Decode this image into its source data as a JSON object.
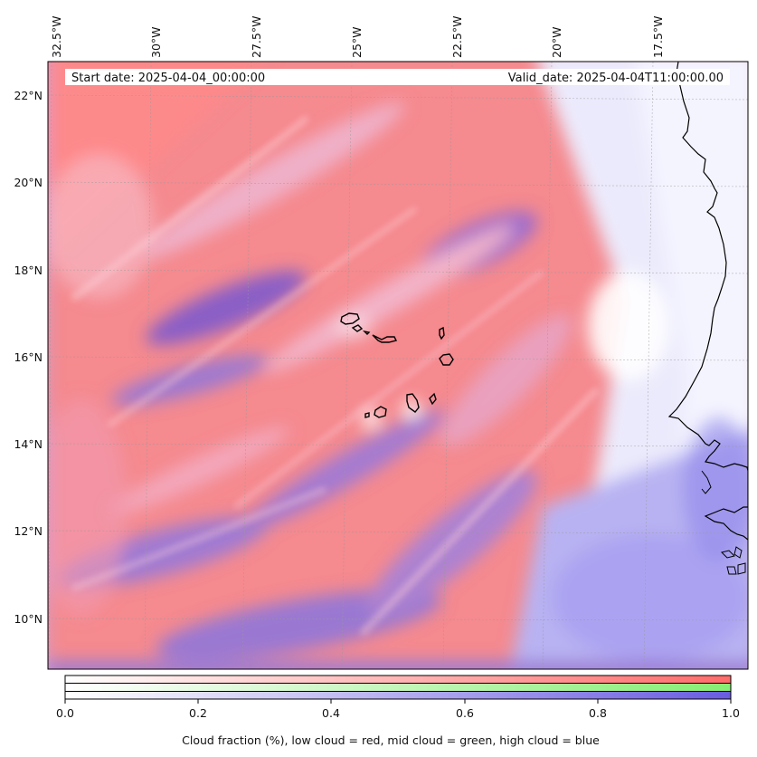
{
  "header": {
    "start_date": "Start date: 2025-04-04_00:00:00",
    "valid_date": "Valid_date: 2025-04-04T11:00:00.00"
  },
  "map": {
    "lon_labels": [
      "32.5°W",
      "30°W",
      "27.5°W",
      "25°W",
      "22.5°W",
      "20°W",
      "17.5°W"
    ],
    "lat_labels": [
      "22°N",
      "20°N",
      "18°N",
      "16°N",
      "14°N",
      "12°N",
      "10°N"
    ],
    "lon_range": [
      -32.5,
      -15.0
    ],
    "lat_range": [
      8.8,
      22.8
    ],
    "gridlines": true,
    "colors": {
      "low_cloud": "#ff7070",
      "mid_cloud": "#8ef07a",
      "high_cloud": "#6f5fd8",
      "coastline": "#000000"
    }
  },
  "colorbar": {
    "ticks": [
      "0.0",
      "0.2",
      "0.4",
      "0.6",
      "0.8",
      "1.0"
    ],
    "label": "Cloud fraction (%), low cloud = red, mid cloud = green, high cloud = blue"
  }
}
